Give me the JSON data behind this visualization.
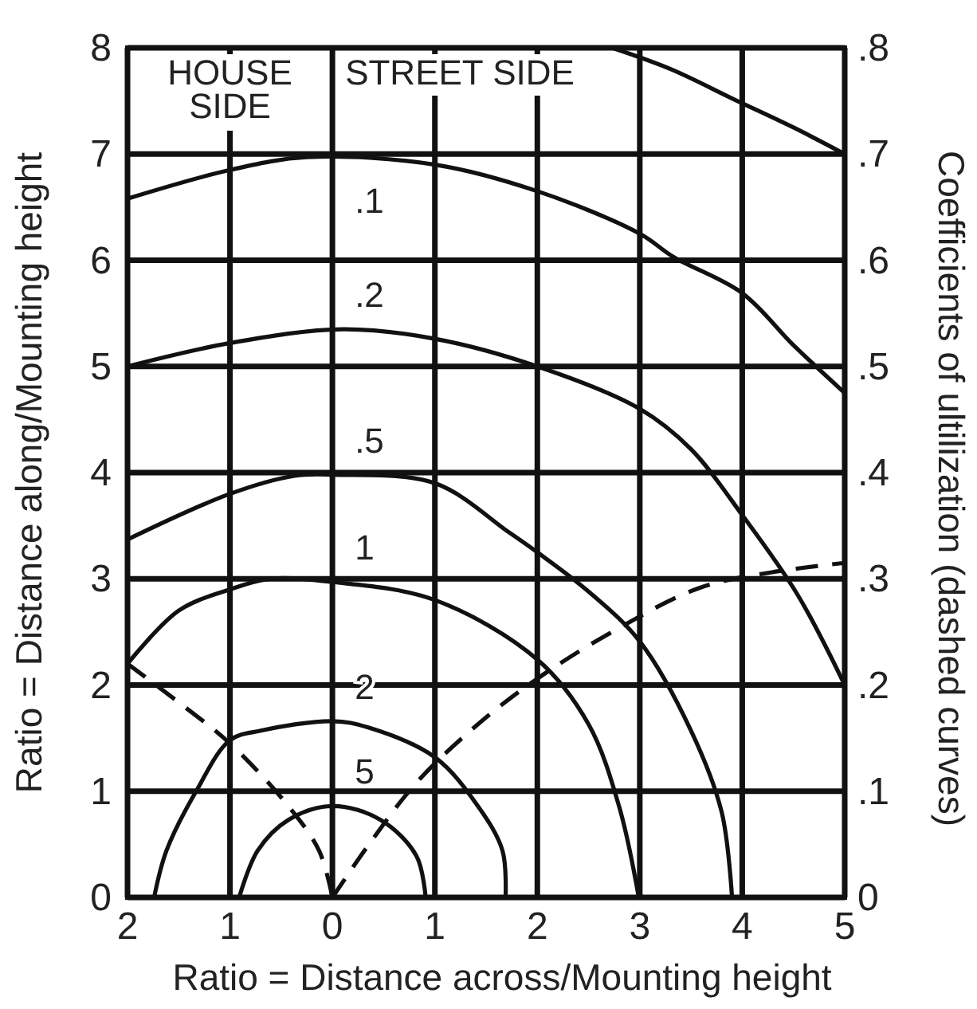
{
  "chart_data": {
    "type": "line",
    "xlabel": "Ratio = Distance across/Mounting height",
    "ylabel": "Ratio = Distance along/Mounting height",
    "y2label": "Coefficients of ultilization (dashed curves)",
    "xlim": [
      -2,
      5
    ],
    "xticks": [
      {
        "value": -2,
        "label": "2"
      },
      {
        "value": -1,
        "label": "1"
      },
      0,
      1,
      2,
      3,
      4,
      5
    ],
    "ylim": [
      0,
      8
    ],
    "yticks": [
      0,
      1,
      2,
      3,
      4,
      5,
      6,
      7,
      8
    ],
    "y2lim": [
      0,
      0.8
    ],
    "y2ticks": [
      {
        "value": 0,
        "label": "0"
      },
      {
        "value": 0.1,
        "label": ".1"
      },
      {
        "value": 0.2,
        "label": ".2"
      },
      {
        "value": 0.3,
        "label": ".3"
      },
      {
        "value": 0.4,
        "label": ".4"
      },
      {
        "value": 0.5,
        "label": ".5"
      },
      {
        "value": 0.6,
        "label": ".6"
      },
      {
        "value": 0.7,
        "label": ".7"
      },
      {
        "value": 0.8,
        "label": ".8"
      }
    ],
    "grid": true,
    "series": [
      {
        "color": "#111111",
        "x": [
          2.73,
          3.3,
          3.93,
          4.5,
          5
        ],
        "values": [
          8,
          7.8,
          7.51,
          7.25,
          7
        ]
      },
      {
        "name": ".1",
        "color": "#111111",
        "x": [
          -2,
          -1,
          -0.25,
          1,
          2,
          3,
          3.33,
          4,
          4.5,
          5
        ],
        "values": [
          6.58,
          6.85,
          6.97,
          6.9,
          6.65,
          6.25,
          6.03,
          5.69,
          5.2,
          4.75
        ]
      },
      {
        "name": ".2",
        "color": "#111111",
        "x": [
          -2,
          -1,
          0.1,
          1,
          2,
          3,
          3.5,
          4,
          4.54,
          5
        ],
        "values": [
          5,
          5.22,
          5.35,
          5.26,
          5,
          4.6,
          4.22,
          3.6,
          2.85,
          2
        ]
      },
      {
        "name": ".5",
        "color": "#111111",
        "x": [
          -2,
          -1,
          -0.37,
          0,
          1,
          1.72,
          2,
          2.5,
          3,
          3.5,
          3.8,
          3.9
        ],
        "values": [
          3.37,
          3.8,
          3.97,
          3.98,
          3.9,
          3.44,
          3.25,
          2.88,
          2.41,
          1.57,
          0.8,
          0
        ]
      },
      {
        "name": "1",
        "color": "#111111",
        "x": [
          -2,
          -1.5,
          -1,
          -0.6,
          0,
          1,
          2,
          2.5,
          2.8,
          2.99
        ],
        "values": [
          2.2,
          2.7,
          2.9,
          3,
          2.97,
          2.8,
          2.24,
          1.63,
          0.85,
          0
        ]
      },
      {
        "name": "2",
        "color": "#111111",
        "x": [
          -1.74,
          -1.62,
          -1.33,
          -1,
          -0.7,
          0,
          0.35,
          1,
          1.42,
          1.66,
          1.69
        ],
        "values": [
          0,
          0.44,
          1,
          1.48,
          1.57,
          1.66,
          1.6,
          1.32,
          0.86,
          0.44,
          0
        ]
      },
      {
        "name": "5",
        "color": "#111111",
        "x": [
          -0.91,
          -0.73,
          -0.43,
          0,
          0.47,
          0.82,
          0.91
        ],
        "values": [
          0,
          0.44,
          0.73,
          0.86,
          0.73,
          0.39,
          0
        ]
      },
      {
        "color": "#111111",
        "axis": "y2",
        "line_style": "dashed",
        "x": [
          -2,
          -1.45,
          -1,
          -0.43,
          -0.13,
          0
        ],
        "values": [
          0.22,
          0.18,
          0.145,
          0.086,
          0.044,
          0
        ]
      },
      {
        "color": "#111111",
        "axis": "y2",
        "line_style": "dashed",
        "x": [
          0,
          0.35,
          0.82,
          1.42,
          2,
          2.73,
          3.57,
          4.28,
          5
        ],
        "values": [
          0,
          0.049,
          0.108,
          0.163,
          0.206,
          0.25,
          0.291,
          0.306,
          0.315
        ]
      }
    ],
    "annotations": [
      "HOUSE SIDE",
      "STREET SIDE"
    ]
  }
}
